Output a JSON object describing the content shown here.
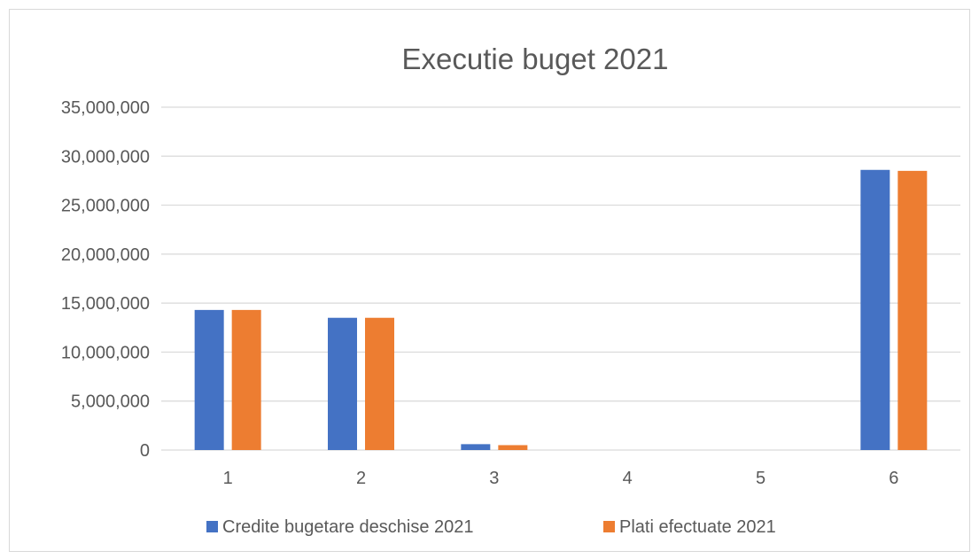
{
  "chart_data": {
    "type": "bar",
    "title": "Executie buget 2021",
    "categories": [
      "1",
      "2",
      "3",
      "4",
      "5",
      "6"
    ],
    "series": [
      {
        "name": "Credite bugetare deschise 2021",
        "color": "#4472C4",
        "values": [
          14300000,
          13500000,
          600000,
          0,
          0,
          28600000
        ]
      },
      {
        "name": "Plati efectuate 2021",
        "color": "#ED7D31",
        "values": [
          14300000,
          13500000,
          500000,
          0,
          0,
          28500000
        ]
      }
    ],
    "ylim": [
      0,
      35000000
    ],
    "yticks": [
      0,
      5000000,
      10000000,
      15000000,
      20000000,
      25000000,
      30000000,
      35000000
    ],
    "ytick_labels": [
      "0",
      "5,000,000",
      "10,000,000",
      "15,000,000",
      "20,000,000",
      "25,000,000",
      "30,000,000",
      "35,000,000"
    ],
    "xlabel": "",
    "ylabel": "",
    "grid": true,
    "legend_position": "bottom"
  }
}
